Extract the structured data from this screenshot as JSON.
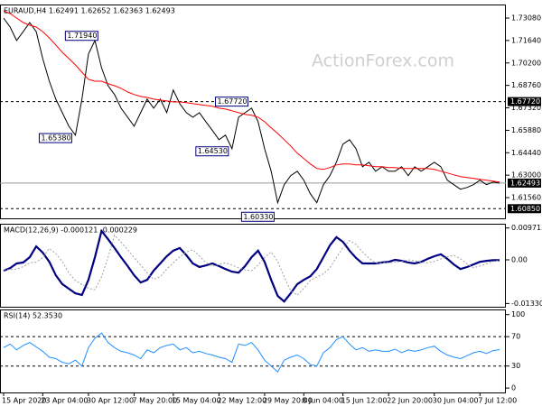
{
  "chart_data": [
    {
      "type": "line",
      "title": "EURAUD,H4  1.62491 1.62652 1.62363 1.62493",
      "watermark": "ActionForex.com",
      "series": [
        {
          "color": "#000000",
          "values": [
            1.7308,
            1.725,
            1.7164,
            1.7221,
            1.7279,
            1.7221,
            1.7048,
            1.6903,
            1.6788,
            1.6701,
            1.6614,
            1.6557,
            1.6788,
            1.7077,
            1.7164,
            1.699,
            1.6874,
            1.6817,
            1.673,
            1.6672,
            1.6614,
            1.6701,
            1.6788,
            1.673,
            1.6788,
            1.6701,
            1.6846,
            1.6759,
            1.6701,
            1.6672,
            1.6701,
            1.6643,
            1.6586,
            1.6528,
            1.6557,
            1.647,
            1.6672,
            1.6701,
            1.673,
            1.6643,
            1.647,
            1.6325,
            1.6123,
            1.6239,
            1.6297,
            1.6325,
            1.6268,
            1.6181,
            1.6123,
            1.6239,
            1.6297,
            1.6383,
            1.6499,
            1.6528,
            1.647,
            1.6354,
            1.6383,
            1.6325,
            1.6354,
            1.6325,
            1.6325,
            1.6354,
            1.6297,
            1.6354,
            1.6325,
            1.6354,
            1.6383,
            1.6354,
            1.6268,
            1.6239,
            1.621,
            1.6221,
            1.6239,
            1.6268,
            1.6239,
            1.6256,
            1.6249
          ]
        },
        {
          "color": "#ff0000",
          "values": [
            1.7354,
            1.7337,
            1.7308,
            1.7279,
            1.7262,
            1.725,
            1.7221,
            1.7181,
            1.7135,
            1.7088,
            1.7048,
            1.7007,
            1.6961,
            1.6915,
            1.6903,
            1.6903,
            1.6886,
            1.6874,
            1.6857,
            1.6834,
            1.6817,
            1.6805,
            1.6799,
            1.6788,
            1.6782,
            1.6776,
            1.677,
            1.677,
            1.6765,
            1.6759,
            1.6753,
            1.6747,
            1.6742,
            1.673,
            1.6724,
            1.6713,
            1.6701,
            1.669,
            1.6684,
            1.6672,
            1.6643,
            1.6603,
            1.6568,
            1.6528,
            1.6487,
            1.6441,
            1.6406,
            1.6372,
            1.6343,
            1.6337,
            1.6349,
            1.6366,
            1.6372,
            1.6372,
            1.6366,
            1.6366,
            1.636,
            1.6354,
            1.6354,
            1.6349,
            1.6349,
            1.6343,
            1.6343,
            1.6343,
            1.6343,
            1.6343,
            1.6337,
            1.6325,
            1.6314,
            1.6302,
            1.6291,
            1.6285,
            1.6279,
            1.6273,
            1.6268,
            1.6262,
            1.6256
          ]
        }
      ],
      "ylim": [
        1.6023,
        1.7395
      ],
      "yticks": [
        {
          "value": 1.7308,
          "label": "1.73080"
        },
        {
          "value": 1.7164,
          "label": "1.71640"
        },
        {
          "value": 1.702,
          "label": "1.70200"
        },
        {
          "value": 1.6876,
          "label": "1.68760"
        },
        {
          "value": 1.6732,
          "label": "1.67320"
        },
        {
          "value": 1.6588,
          "label": "1.65880"
        },
        {
          "value": 1.6444,
          "label": "1.64440"
        },
        {
          "value": 1.63,
          "label": "1.63000"
        },
        {
          "value": 1.6156,
          "label": "1.61560"
        }
      ],
      "levels": [
        {
          "value": 1.6772,
          "label": "1.67720",
          "dashed": true
        },
        {
          "value": 1.62493,
          "label": "1.62493",
          "dashed": false
        },
        {
          "value": 1.6085,
          "label": "1.60850",
          "dashed": true
        }
      ],
      "annotations": [
        {
          "x": 15,
          "value": 1.7194,
          "label": "1.71940"
        },
        {
          "x": 11,
          "value": 1.6538,
          "label": "1.65380"
        },
        {
          "x": 38,
          "value": 1.6772,
          "label": "1.67720"
        },
        {
          "x": 35,
          "value": 1.6453,
          "label": "1.64530"
        },
        {
          "x": 42,
          "value": 1.6033,
          "label": "1.60330"
        }
      ]
    },
    {
      "type": "line",
      "title": "MACD(12,26,9) -0.000121 -0.000229",
      "series": [
        {
          "color": "#000080",
          "values": [
            -0.0033,
            -0.0025,
            -0.0011,
            -0.0008,
            0.0008,
            0.0041,
            0.0022,
            -0.0006,
            -0.0047,
            -0.0074,
            -0.0088,
            -0.0102,
            -0.0107,
            -0.0061,
            0.0008,
            0.0088,
            0.0063,
            0.0036,
            0.0008,
            -0.0019,
            -0.0047,
            -0.0069,
            -0.0061,
            -0.0033,
            -0.0011,
            0.0011,
            0.0028,
            0.0036,
            0.0014,
            -0.0011,
            -0.0022,
            -0.0017,
            -0.0011,
            -0.0019,
            -0.0028,
            -0.0036,
            -0.0039,
            -0.0019,
            0.0008,
            0.0028,
            -0.0006,
            -0.0061,
            -0.011,
            -0.0127,
            -0.0102,
            -0.0074,
            -0.0061,
            -0.005,
            -0.0028,
            0.0008,
            0.0044,
            0.0069,
            0.0055,
            0.0028,
            0.0006,
            -0.0011,
            -0.0011,
            -0.0011,
            -0.0008,
            -0.0006,
            0.0,
            -0.0003,
            -0.0008,
            -0.0011,
            -0.0006,
            0.0003,
            0.0011,
            0.0017,
            0.0003,
            -0.0014,
            -0.0028,
            -0.0022,
            -0.0014,
            -0.0006,
            -0.0003,
            -0.0001,
            -0.0001
          ]
        },
        {
          "color": "#a0a0a0",
          "values": [
            -0.003,
            -0.003,
            -0.0028,
            -0.0021,
            -0.0009,
            -0.0007,
            0.0007,
            0.0035,
            0.0019,
            -0.0005,
            -0.004,
            -0.0063,
            -0.0075,
            -0.0087,
            -0.0091,
            -0.0052,
            0.0007,
            0.0075,
            0.0054,
            0.0031,
            0.0007,
            -0.0016,
            -0.004,
            -0.0059,
            -0.0052,
            -0.0028,
            -0.0009,
            0.0009,
            0.0024,
            0.0031,
            0.0012,
            -0.0009,
            -0.0019,
            -0.0014,
            -0.0009,
            -0.0016,
            -0.0024,
            -0.0031,
            -0.0033,
            -0.0016,
            0.0007,
            0.0024,
            -0.0005,
            -0.0052,
            -0.0094,
            -0.0108,
            -0.0087,
            -0.0063,
            -0.0052,
            -0.0043,
            -0.0024,
            0.0007,
            0.0037,
            0.0059,
            0.0047,
            0.0024,
            0.0005,
            -0.0009,
            -0.0009,
            -0.0009,
            -0.0007,
            -0.0005,
            0.0,
            -0.0003,
            -0.0007,
            -0.0009,
            -0.0005,
            0.0003,
            0.0009,
            0.0014,
            0.0003,
            -0.0012,
            -0.0024,
            -0.0019,
            -0.0012,
            -0.0005,
            -0.0002
          ]
        }
      ],
      "ylim": [
        -0.0143,
        0.011
      ],
      "yticks": [
        0.009713,
        {
          "value": 0,
          "label": "0.00"
        },
        -0.013302
      ]
    },
    {
      "type": "line",
      "title": "RSI(14) 52.3530",
      "categories": [
        "15 Apr 2020",
        null,
        null,
        null,
        null,
        null,
        "23 Apr 04:00",
        null,
        null,
        null,
        null,
        null,
        null,
        "30 Apr 12:00",
        null,
        null,
        null,
        null,
        null,
        null,
        "7 May 20:00",
        null,
        null,
        null,
        null,
        null,
        "15 May 04:00",
        null,
        null,
        null,
        null,
        null,
        null,
        "22 May 12:00",
        null,
        null,
        null,
        null,
        null,
        null,
        "29 May 20:00",
        null,
        null,
        null,
        null,
        null,
        "8 Jun 04:00",
        null,
        null,
        null,
        null,
        null,
        "15 Jun 12:00",
        null,
        null,
        null,
        null,
        null,
        null,
        "22 Jun 20:00",
        null,
        null,
        null,
        null,
        null,
        null,
        "30 Jun 04:00",
        null,
        null,
        null,
        null,
        null,
        null,
        "7 Jul 12:00",
        null,
        null,
        null
      ],
      "series": [
        {
          "color": "#1e90ff",
          "values": [
            55,
            60,
            52,
            58,
            62,
            56,
            50,
            42,
            40,
            35,
            33,
            38,
            30,
            55,
            68,
            75,
            62,
            55,
            50,
            48,
            45,
            40,
            52,
            48,
            55,
            58,
            60,
            52,
            55,
            48,
            50,
            47,
            45,
            42,
            40,
            35,
            60,
            58,
            62,
            52,
            38,
            30,
            22,
            38,
            42,
            45,
            40,
            32,
            30,
            48,
            55,
            66,
            70,
            60,
            52,
            55,
            50,
            52,
            50,
            50,
            53,
            48,
            52,
            50,
            52,
            55,
            57,
            50,
            45,
            42,
            40,
            44,
            48,
            50,
            47,
            51,
            52.353
          ]
        }
      ],
      "ylim": [
        -6,
        107
      ],
      "yticks": [
        100,
        70,
        30,
        0
      ],
      "levels": [
        {
          "value": 70,
          "dashed": true
        },
        {
          "value": 30,
          "dashed": true
        }
      ]
    }
  ]
}
